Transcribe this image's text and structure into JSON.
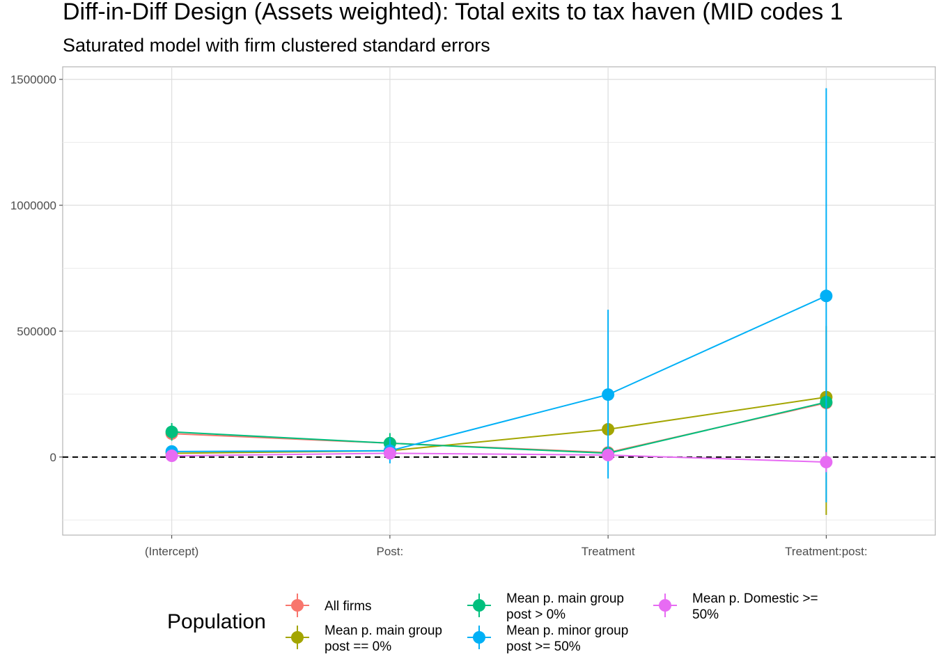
{
  "chart_data": {
    "type": "scatter",
    "title": "Diff-in-Diff Design (Assets weighted): Total exits to tax haven (MID codes 1",
    "subtitle": "Saturated model with firm clustered standard errors",
    "xlabel": "",
    "ylabel": "",
    "categories": [
      "(Intercept)",
      "Post:",
      "Treatment",
      "Treatment:post:"
    ],
    "y_ticks": [
      0,
      500000,
      1000000,
      1500000
    ],
    "y_tick_labels": [
      "0",
      "500000",
      "1000000",
      "1500000"
    ],
    "ylim": [
      -310000,
      1550000
    ],
    "reference_line": 0,
    "grid": true,
    "legend": {
      "title": "Population",
      "placement": "bottom",
      "entries": [
        {
          "lines": [
            "All firms"
          ],
          "color": "#F8766D"
        },
        {
          "lines": [
            "Mean p. main group",
            "post == 0%"
          ],
          "color": "#A3A500"
        },
        {
          "lines": [
            "Mean p. main group",
            "post > 0%"
          ],
          "color": "#00BF7D"
        },
        {
          "lines": [
            "Mean p. minor group",
            "post >= 50%"
          ],
          "color": "#00B0F6"
        },
        {
          "lines": [
            "Mean p. Domestic >=",
            "50%"
          ],
          "color": "#E76BF3"
        }
      ]
    },
    "series": [
      {
        "name": "All firms",
        "color": "#F8766D",
        "values": [
          93000,
          55000,
          18000,
          215000
        ],
        "lower": [
          80000,
          40000,
          5000,
          200000
        ],
        "upper": [
          106000,
          70000,
          31000,
          230000
        ]
      },
      {
        "name": "Mean p. main group post == 0%",
        "color": "#A3A500",
        "values": [
          15000,
          25000,
          110000,
          238000
        ],
        "lower": [
          5000,
          10000,
          95000,
          -230000
        ],
        "upper": [
          25000,
          40000,
          125000,
          520000
        ]
      },
      {
        "name": "Mean p. main group post > 0%",
        "color": "#00BF7D",
        "values": [
          100000,
          55000,
          15000,
          218000
        ],
        "lower": [
          65000,
          15000,
          0,
          200000
        ],
        "upper": [
          135000,
          95000,
          30000,
          236000
        ]
      },
      {
        "name": "Mean p. minor group post >= 50%",
        "color": "#00B0F6",
        "values": [
          22000,
          25000,
          248000,
          640000
        ],
        "lower": [
          10000,
          -25000,
          -85000,
          -180000
        ],
        "upper": [
          34000,
          75000,
          585000,
          1465000
        ]
      },
      {
        "name": "Mean p. Domestic >= 50%",
        "color": "#E76BF3",
        "values": [
          5000,
          15000,
          8000,
          -20000
        ],
        "lower": [
          -5000,
          5000,
          -5000,
          -60000
        ],
        "upper": [
          15000,
          25000,
          21000,
          20000
        ]
      }
    ]
  }
}
